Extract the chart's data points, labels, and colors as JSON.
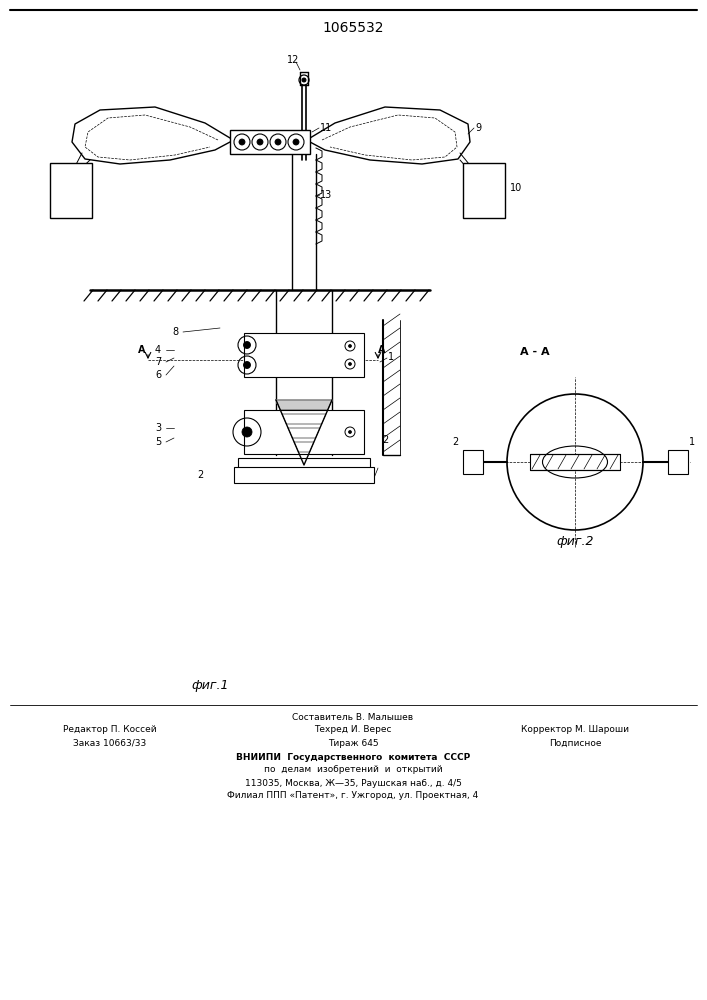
{
  "patent_number": "1065532",
  "background_color": "#ffffff",
  "line_color": "#000000",
  "fig1_label": "фиг.1",
  "fig2_label": "фиг.2",
  "footer_line1": "Составитель В. Малышев",
  "footer_line2_left": "Редактор П. Коссей",
  "footer_line2_mid": "Техред И. Верес",
  "footer_line2_right": "Корректор М. Шароши",
  "footer_line3_left": "Заказ 10663/33",
  "footer_line3_mid": "Тираж 645",
  "footer_line3_right": "Подписное",
  "footer_line4": "ВНИИПИ  Государственного  комитета  СССР",
  "footer_line5": "по  делам  изобретений  и  открытий",
  "footer_line6": "113035, Москва, Ж—35, Раушская наб., д. 4/5",
  "footer_line7": "Филиал ППП «Патент», г. Ужгород, ул. Проектная, 4"
}
